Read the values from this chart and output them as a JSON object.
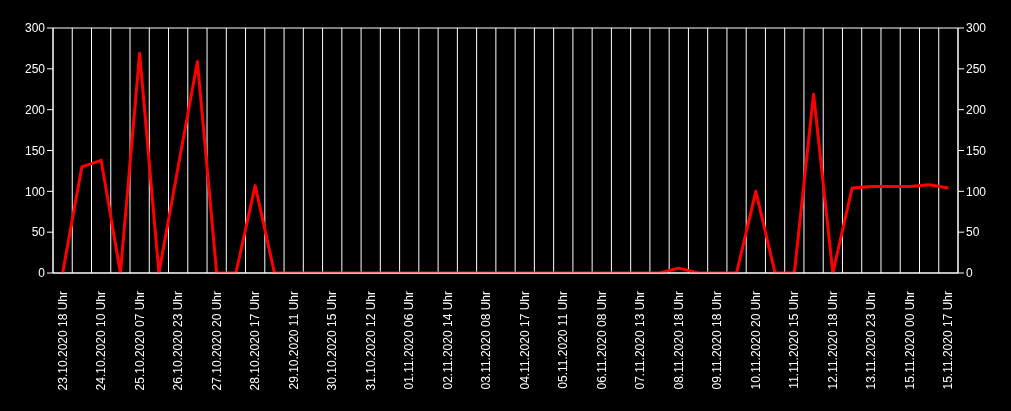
{
  "chart_data": {
    "type": "line",
    "categories": [
      "23.10.2020 18 Uhr",
      null,
      "24.10.2020 10 Uhr",
      null,
      "25.10.2020 07 Uhr",
      null,
      "26.10.2020 23 Uhr",
      null,
      "27.10.2020 20 Uhr",
      null,
      "28.10.2020 17 Uhr",
      null,
      "29.10.2020 11 Uhr",
      null,
      "30.10.2020 15 Uhr",
      null,
      "31.10.2020 12 Uhr",
      null,
      "01.11.2020 06 Uhr",
      null,
      "02.11.2020 14 Uhr",
      null,
      "03.11.2020 08 Uhr",
      null,
      "04.11.2020 17 Uhr",
      null,
      "05.11.2020 11 Uhr",
      null,
      "06.11.2020 08 Uhr",
      null,
      "07.11.2020 13 Uhr",
      null,
      "08.11.2020 18 Uhr",
      null,
      "09.11.2020 18 Uhr",
      null,
      "10.11.2020 20 Uhr",
      null,
      "11.11.2020 15 Uhr",
      null,
      "12.11.2020 18 Uhr",
      null,
      "13.11.2020 23 Uhr",
      null,
      "15.11.2020 00 Uhr",
      null,
      "15.11.2020 17 Uhr"
    ],
    "series": [
      {
        "color": "#ff0000",
        "values": [
          0,
          130,
          138,
          0,
          269,
          0,
          130,
          259,
          0,
          0,
          107,
          0,
          0,
          0,
          0,
          0,
          0,
          0,
          0,
          0,
          0,
          0,
          0,
          0,
          0,
          0,
          0,
          0,
          0,
          0,
          0,
          0,
          6,
          0,
          0,
          0,
          100,
          0,
          0,
          219,
          0,
          104,
          106,
          106,
          106,
          108,
          104
        ]
      }
    ],
    "ylim": [
      0,
      300
    ],
    "yticks": [
      0,
      50,
      100,
      150,
      200,
      250,
      300
    ],
    "y2lim": [
      0,
      300
    ],
    "y2ticks": [
      0,
      50,
      100,
      150,
      200,
      250,
      300
    ],
    "grid": true,
    "legend": false,
    "marker": "none",
    "line_style": "solid"
  }
}
